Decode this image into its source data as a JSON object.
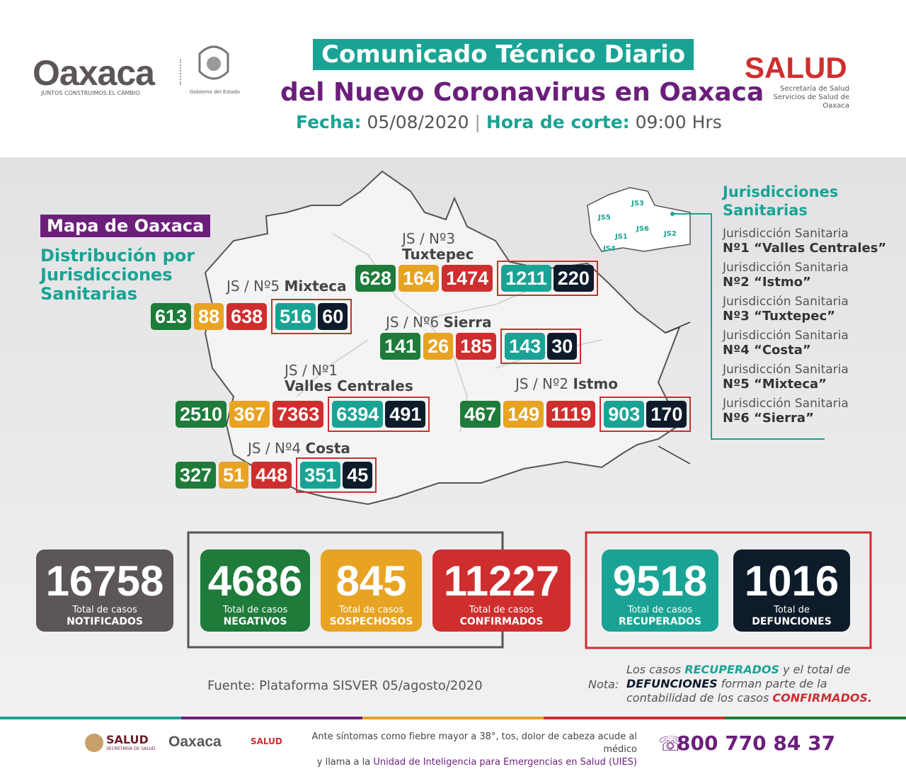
{
  "header": {
    "logo_text": "Oaxaca",
    "logo_tagline": "JUNTOS CONSTRUIMOS EL CAMBIO",
    "gobierno": "Gobierno del Estado",
    "title_line1": "Comunicado Técnico Diario",
    "title_line2": "del Nuevo Coronavirus en Oaxaca",
    "fecha_label": "Fecha:",
    "fecha": "05/08/2020",
    "hora_label": "Hora de corte:",
    "hora": "09:00 Hrs",
    "salud": "SALUD",
    "salud_sub1": "Secretaría de Salud",
    "salud_sub2": "Servicios de Salud de Oaxaca"
  },
  "map": {
    "label": "Mapa de Oaxaca",
    "subtitle": [
      "Distribución por",
      "Jurisdicciones",
      "Sanitarias"
    ],
    "jurisdictions": [
      {
        "label": "JS / Nº3",
        "name": "Tuxtepec",
        "values": [
          "628",
          "164",
          "1474",
          "1211",
          "220"
        ]
      },
      {
        "label": "JS / Nº5",
        "name": "Mixteca",
        "values": [
          "613",
          "88",
          "638",
          "516",
          "60"
        ]
      },
      {
        "label": "JS / Nº6",
        "name": "Sierra",
        "values": [
          "141",
          "26",
          "185",
          "143",
          "30"
        ]
      },
      {
        "label": "JS / Nº1",
        "name": "Valles Centrales",
        "values": [
          "2510",
          "367",
          "7363",
          "6394",
          "491"
        ]
      },
      {
        "label": "JS / Nº2",
        "name": "Istmo",
        "values": [
          "467",
          "149",
          "1119",
          "903",
          "170"
        ]
      },
      {
        "label": "JS / Nº4",
        "name": "Costa",
        "values": [
          "327",
          "51",
          "448",
          "351",
          "45"
        ]
      }
    ],
    "mini_labels": [
      "JS3",
      "JS5",
      "JS1",
      "JS6",
      "JS2",
      "JS4"
    ]
  },
  "legend": {
    "title": [
      "Jurisdicciones",
      "Sanitarias"
    ],
    "items": [
      {
        "line1": "Jurisdicción Sanitaria",
        "line2": "Nº1 “Valles Centrales”"
      },
      {
        "line1": "Jurisdicción Sanitaria",
        "line2": "Nº2 “Istmo”"
      },
      {
        "line1": "Jurisdicción Sanitaria",
        "line2": "Nº3 “Tuxtepec”"
      },
      {
        "line1": "Jurisdicción Sanitaria",
        "line2": "Nº4 “Costa”"
      },
      {
        "line1": "Jurisdicción Sanitaria",
        "line2": "Nº5 “Mixteca”"
      },
      {
        "line1": "Jurisdicción Sanitaria",
        "line2": "Nº6 “Sierra”"
      }
    ]
  },
  "totals": [
    {
      "value": "16758",
      "line1": "Total de casos",
      "line2": "NOTIFICADOS"
    },
    {
      "value": "4686",
      "line1": "Total de casos",
      "line2": "NEGATIVOS"
    },
    {
      "value": "845",
      "line1": "Total de casos",
      "line2": "SOSPECHOSOS"
    },
    {
      "value": "11227",
      "line1": "Total de casos",
      "line2": "CONFIRMADOS"
    },
    {
      "value": "9518",
      "line1": "Total de casos",
      "line2": "RECUPERADOS"
    },
    {
      "value": "1016",
      "line1": "Total de",
      "line2": "DEFUNCIONES"
    }
  ],
  "source": "Fuente: Plataforma SISVER 05/agosto/2020",
  "note": {
    "label": "Nota:",
    "lines": [
      [
        "Los casos ",
        "RECUPERADOS",
        " y el total de"
      ],
      [
        "DEFUNCIONES",
        " forman parte de la"
      ],
      [
        "contabilidad de los casos ",
        "CONFIRMADOS."
      ]
    ]
  },
  "footer": {
    "salud": "SALUD",
    "salud_sub": "SECRETARÍA DE SALUD",
    "logo_text": "Oaxaca",
    "salud2": "SALUD",
    "message_line1": "Ante síntomas como fiebre mayor a 38°, tos, dolor de cabeza acude al médico",
    "message_line2a": "y llama a la ",
    "message_line2b": "Unidad de Inteligencia para Emergencias en Salud (UIES)",
    "phone": "800 770 84 37"
  }
}
